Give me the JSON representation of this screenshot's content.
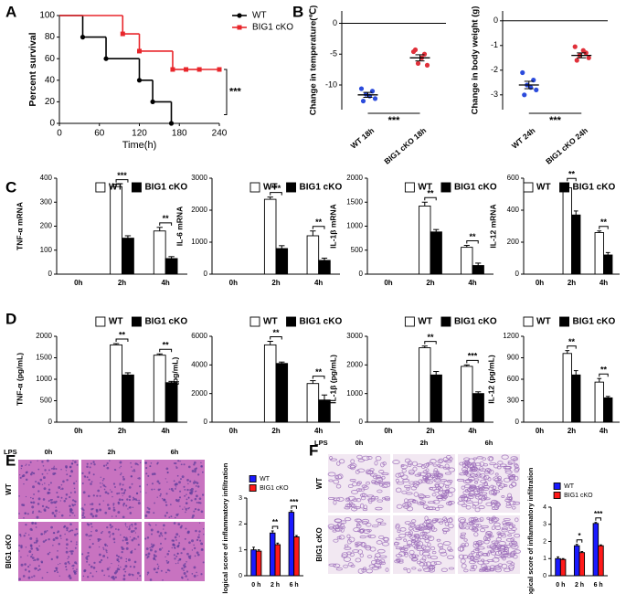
{
  "panels": [
    "A",
    "B",
    "C",
    "D",
    "E",
    "F"
  ],
  "chart_data": [
    {
      "type": "step",
      "ylabel": "Percent survival",
      "xlabel": "Time(h)",
      "xlim": [
        0,
        240
      ],
      "xticks": [
        0,
        60,
        120,
        180,
        240
      ],
      "ylim": [
        0,
        100
      ],
      "yticks": [
        0,
        20,
        40,
        60,
        80,
        100
      ],
      "annotation": "***",
      "legend": "upper-right",
      "series": [
        {
          "name": "WT",
          "color": "#000000",
          "marker": "circle",
          "x": [
            0,
            35,
            70,
            120,
            140,
            168
          ],
          "values": [
            100,
            80,
            60,
            40,
            20,
            0
          ]
        },
        {
          "name": "BIG1 cKO",
          "color": "#e8262b",
          "marker": "square",
          "x": [
            0,
            95,
            120,
            170,
            190,
            210,
            240
          ],
          "values": [
            100,
            83,
            67,
            50,
            50,
            50,
            50
          ]
        }
      ]
    },
    {
      "type": "dot",
      "ylabel": "Change in temperature(℃)",
      "ylim": [
        -14,
        2
      ],
      "yticks": [
        -10,
        -5,
        0
      ],
      "categories": [
        "WT 18h",
        "BIG1 cKO 18h"
      ],
      "annotation": "***",
      "groups": [
        {
          "color": "#2b4bdc",
          "values": [
            -10.6,
            -11.0,
            -11.5,
            -12.2,
            -12.6,
            -11.8
          ],
          "mean": -11.6,
          "sem": 0.4
        },
        {
          "color": "#e0303a",
          "values": [
            -4.6,
            -5.0,
            -6.5,
            -6.8,
            -4.3,
            -5.6
          ],
          "mean": -5.6,
          "sem": 0.5
        }
      ]
    },
    {
      "type": "dot",
      "ylabel": "Change in body weight (g)",
      "ylim": [
        -3.6,
        0.4
      ],
      "yticks": [
        -3,
        -2,
        -1,
        0
      ],
      "categories": [
        "WT 24h",
        "BIG1 cKO 24h"
      ],
      "annotation": "***",
      "groups": [
        {
          "color": "#2b4bdc",
          "values": [
            -2.1,
            -2.4,
            -2.6,
            -2.8,
            -3.0,
            -2.7
          ],
          "mean": -2.6,
          "sem": 0.15
        },
        {
          "color": "#e0303a",
          "values": [
            -1.05,
            -1.3,
            -1.4,
            -1.5,
            -1.6,
            -1.2
          ],
          "mean": -1.4,
          "sem": 0.1
        }
      ]
    },
    {
      "type": "bar",
      "ylabel": "TNF-α mRNA",
      "ylim": [
        0,
        400
      ],
      "yticks": [
        0,
        100,
        200,
        300,
        400
      ],
      "categories": [
        "0h",
        "2h",
        "4h"
      ],
      "legend": "top",
      "series": [
        {
          "name": "WT",
          "color": "#ffffff",
          "values": [
            0,
            365,
            180
          ],
          "errors": [
            0,
            10,
            15
          ]
        },
        {
          "name": "BIG1 cKO",
          "color": "#000000",
          "values": [
            0,
            150,
            65
          ],
          "errors": [
            0,
            10,
            8
          ]
        }
      ],
      "significance": [
        null,
        "***",
        "**"
      ]
    },
    {
      "type": "bar",
      "ylabel": "IL-6 mRNA",
      "ylim": [
        0,
        3000
      ],
      "yticks": [
        0,
        1000,
        2000,
        3000
      ],
      "categories": [
        "0h",
        "2h",
        "4h"
      ],
      "legend": "top",
      "series": [
        {
          "name": "WT",
          "color": "#ffffff",
          "values": [
            0,
            2340,
            1200
          ],
          "errors": [
            0,
            70,
            150
          ]
        },
        {
          "name": "BIG1 cKO",
          "color": "#000000",
          "values": [
            0,
            800,
            430
          ],
          "errors": [
            0,
            90,
            70
          ]
        }
      ],
      "significance": [
        null,
        "***",
        "**"
      ]
    },
    {
      "type": "bar",
      "ylabel": "IL-1β mRNA",
      "ylim": [
        0,
        2000
      ],
      "yticks": [
        0,
        500,
        1000,
        1500,
        2000
      ],
      "categories": [
        "0h",
        "2h",
        "4h"
      ],
      "legend": "top",
      "series": [
        {
          "name": "WT",
          "color": "#ffffff",
          "values": [
            0,
            1420,
            560
          ],
          "errors": [
            0,
            80,
            40
          ]
        },
        {
          "name": "BIG1 cKO",
          "color": "#000000",
          "values": [
            0,
            880,
            180
          ],
          "errors": [
            0,
            50,
            50
          ]
        }
      ],
      "significance": [
        null,
        "**",
        "**"
      ]
    },
    {
      "type": "bar",
      "ylabel": "IL-12 mRNA",
      "ylim": [
        0,
        600
      ],
      "yticks": [
        0,
        200,
        400,
        600
      ],
      "categories": [
        "0h",
        "2h",
        "4h"
      ],
      "legend": "top",
      "series": [
        {
          "name": "WT",
          "color": "#ffffff",
          "values": [
            0,
            540,
            260
          ],
          "errors": [
            0,
            30,
            10
          ]
        },
        {
          "name": "BIG1 cKO",
          "color": "#000000",
          "values": [
            0,
            370,
            120
          ],
          "errors": [
            0,
            25,
            15
          ]
        }
      ],
      "significance": [
        null,
        "**",
        "**"
      ]
    },
    {
      "type": "bar",
      "ylabel": "TNF-α (pg/mL)",
      "ylim": [
        0,
        2000
      ],
      "yticks": [
        0,
        500,
        1000,
        1500,
        2000
      ],
      "categories": [
        "0h",
        "2h",
        "4h"
      ],
      "legend": "top",
      "series": [
        {
          "name": "WT",
          "color": "#ffffff",
          "values": [
            0,
            1800,
            1560
          ],
          "errors": [
            0,
            30,
            30
          ]
        },
        {
          "name": "BIG1 cKO",
          "color": "#000000",
          "values": [
            0,
            1100,
            920
          ],
          "errors": [
            0,
            50,
            30
          ]
        }
      ],
      "significance": [
        null,
        "**",
        "**"
      ]
    },
    {
      "type": "bar",
      "ylabel": "IL-6 (pg/mL)",
      "ylim": [
        0,
        6000
      ],
      "yticks": [
        0,
        2000,
        4000,
        6000
      ],
      "categories": [
        "0h",
        "2h",
        "4h"
      ],
      "legend": "top",
      "series": [
        {
          "name": "WT",
          "color": "#ffffff",
          "values": [
            0,
            5400,
            2700
          ],
          "errors": [
            0,
            250,
            200
          ]
        },
        {
          "name": "BIG1 cKO",
          "color": "#000000",
          "values": [
            0,
            4100,
            1550
          ],
          "errors": [
            0,
            100,
            350
          ]
        }
      ],
      "significance": [
        null,
        "**",
        "**"
      ]
    },
    {
      "type": "bar",
      "ylabel": "IL-1β (pg/mL)",
      "ylim": [
        0,
        3000
      ],
      "yticks": [
        0,
        1000,
        2000,
        3000
      ],
      "categories": [
        "0h",
        "2h",
        "4h"
      ],
      "legend": "top",
      "series": [
        {
          "name": "WT",
          "color": "#ffffff",
          "values": [
            0,
            2600,
            1950
          ],
          "errors": [
            0,
            60,
            50
          ]
        },
        {
          "name": "BIG1 cKO",
          "color": "#000000",
          "values": [
            0,
            1650,
            1000
          ],
          "errors": [
            0,
            120,
            60
          ]
        }
      ],
      "significance": [
        null,
        "**",
        "***"
      ]
    },
    {
      "type": "bar",
      "ylabel": "IL-12 (pg/mL)",
      "ylim": [
        0,
        1200
      ],
      "yticks": [
        0,
        300,
        600,
        900,
        1200
      ],
      "categories": [
        "0h",
        "2h",
        "4h"
      ],
      "legend": "top",
      "series": [
        {
          "name": "WT",
          "color": "#ffffff",
          "values": [
            0,
            960,
            560
          ],
          "errors": [
            0,
            40,
            50
          ]
        },
        {
          "name": "BIG1 cKO",
          "color": "#000000",
          "values": [
            0,
            660,
            340
          ],
          "errors": [
            0,
            60,
            20
          ]
        }
      ],
      "significance": [
        null,
        "**",
        "**"
      ]
    },
    {
      "type": "bar",
      "ylabel": "Histological score of inflammatory infiltration",
      "ylim": [
        0,
        3
      ],
      "yticks": [
        0,
        1,
        2,
        3
      ],
      "categories": [
        "0 h",
        "2 h",
        "6 h"
      ],
      "legend": "upper-left",
      "series": [
        {
          "name": "WT",
          "color": "#1a1aff",
          "values": [
            1.0,
            1.65,
            2.45
          ],
          "errors": [
            0.1,
            0.08,
            0.06
          ]
        },
        {
          "name": "BIG1 cKO",
          "color": "#ff1a1a",
          "values": [
            0.95,
            1.2,
            1.5
          ],
          "errors": [
            0.05,
            0.06,
            0.05
          ]
        }
      ],
      "significance": [
        null,
        "**",
        "***"
      ]
    },
    {
      "type": "bar",
      "ylabel": "Histological score of inflammatory infiltration",
      "ylim": [
        0,
        4
      ],
      "yticks": [
        0,
        1,
        2,
        3,
        4
      ],
      "categories": [
        "0 h",
        "2 h",
        "6 h"
      ],
      "legend": "upper-left",
      "series": [
        {
          "name": "WT",
          "color": "#1a1aff",
          "values": [
            1.0,
            1.75,
            3.05
          ],
          "errors": [
            0.1,
            0.08,
            0.06
          ]
        },
        {
          "name": "BIG1 cKO",
          "color": "#ff1a1a",
          "values": [
            0.95,
            1.35,
            1.75
          ],
          "errors": [
            0.05,
            0.06,
            0.05
          ]
        }
      ],
      "significance": [
        null,
        "*",
        "***"
      ]
    }
  ],
  "histology": [
    {
      "corner": "LPS",
      "columns": [
        "0h",
        "2h",
        "6h"
      ],
      "rows": [
        "WT",
        "BIG1 cKO"
      ]
    },
    {
      "corner": "LPS",
      "columns": [
        "0h",
        "2h",
        "6h"
      ],
      "rows": [
        "WT",
        "BIG1 cKO"
      ]
    }
  ]
}
